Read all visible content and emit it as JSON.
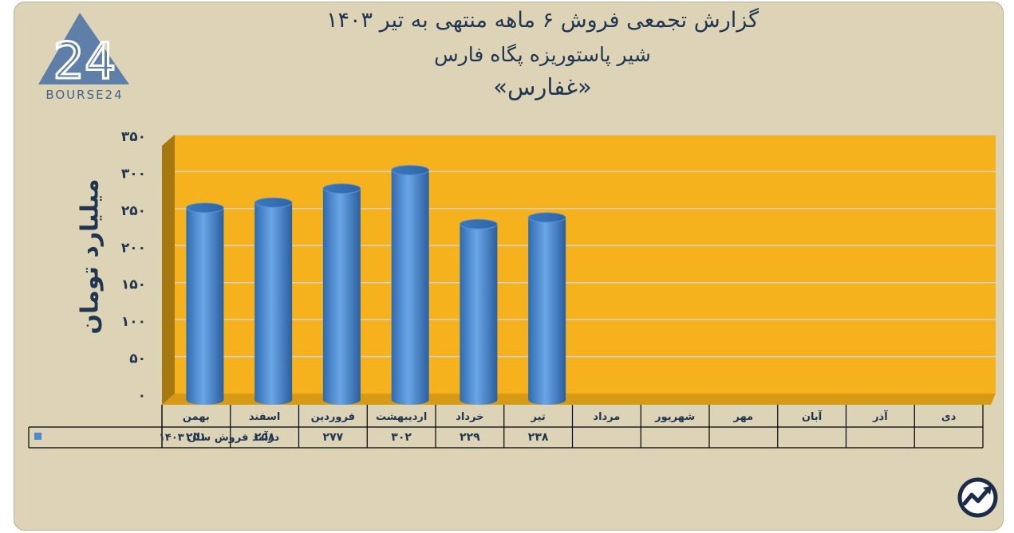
{
  "header": {
    "title_line1": "گزارش تجمعی فروش ۶ ماهه منتهی به تیر ۱۴۰۳",
    "title_line2": "شیر پاستوریزه پگاه فارس",
    "title_line3": "«غفارس»"
  },
  "logo": {
    "text": "BOURSE24",
    "mark": "24",
    "icon": "triangle-24-logo"
  },
  "badge": {
    "icon": "trend-up-arrow-icon"
  },
  "colors": {
    "background": "#ddd3b6",
    "plot": "#f6b21c",
    "bar": "#4a8ad0",
    "text": "#1f3550"
  },
  "chart_data": {
    "type": "bar",
    "ylabel": "میلیارد تومان",
    "ylim": [
      0,
      350
    ],
    "yticks": [
      0,
      50,
      100,
      150,
      200,
      250,
      300,
      350
    ],
    "ytick_labels": [
      "۰",
      "۵۰",
      "۱۰۰",
      "۱۵۰",
      "۲۰۰",
      "۲۵۰",
      "۳۰۰",
      "۳۵۰"
    ],
    "categories": [
      "بهمن",
      "اسفند",
      "فروردین",
      "اردیبهشت",
      "خرداد",
      "تیر",
      "مرداد",
      "شهریور",
      "مهر",
      "آبان",
      "آذر",
      "دی"
    ],
    "series": [
      {
        "name": "درآمد فروش سال ۱۴۰۳",
        "values": [
          251,
          258,
          277,
          302,
          229,
          238,
          null,
          null,
          null,
          null,
          null,
          null
        ],
        "labels": [
          "۲۵۱",
          "۲۵۸",
          "۲۷۷",
          "۳۰۲",
          "۲۲۹",
          "۲۳۸",
          "",
          "",
          "",
          "",
          "",
          ""
        ]
      }
    ],
    "grid": true,
    "legend": "data-table"
  }
}
